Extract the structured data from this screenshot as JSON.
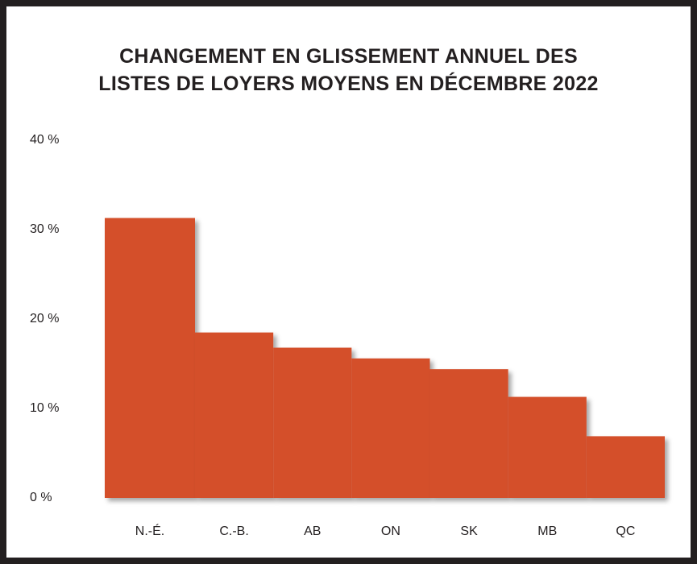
{
  "chart_data": {
    "type": "bar",
    "title": "CHANGEMENT EN GLISSEMENT ANNUEL  DES\nLISTES DE LOYERS MOYENS EN DÉCEMBRE 2022",
    "categories": [
      "N.-É.",
      "C.-B.",
      "AB",
      "ON",
      "SK",
      "MB",
      "QC"
    ],
    "values": [
      31.3,
      18.5,
      16.8,
      15.6,
      14.4,
      11.3,
      6.9
    ],
    "color": "#d4502a",
    "ylim": [
      0,
      40
    ],
    "yticks": [
      {
        "value": 0,
        "label": "0 %"
      },
      {
        "value": 10,
        "label": "10 %"
      },
      {
        "value": 20,
        "label": "20 %"
      },
      {
        "value": 30,
        "label": "30 %"
      },
      {
        "value": 40,
        "label": "40 %"
      }
    ],
    "grid": false
  }
}
